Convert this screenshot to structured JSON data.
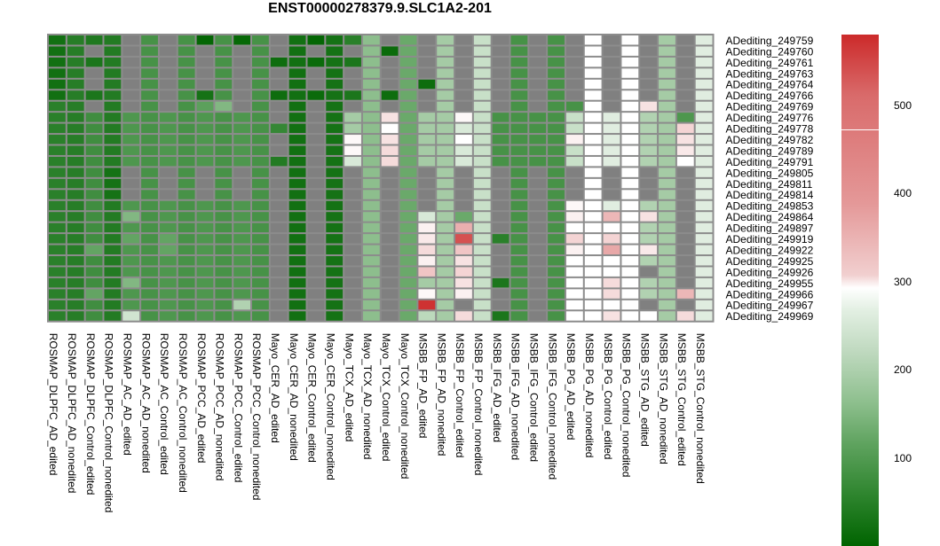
{
  "chart_data": {
    "type": "heatmap",
    "title": "ENST00000278379.9.SLC1A2-201",
    "na_color": "#808080",
    "rows": [
      "ADediting_249759",
      "ADediting_249760",
      "ADediting_249761",
      "ADediting_249763",
      "ADediting_249764",
      "ADediting_249766",
      "ADediting_249769",
      "ADediting_249776",
      "ADediting_249778",
      "ADediting_249782",
      "ADediting_249789",
      "ADediting_249791",
      "ADediting_249805",
      "ADediting_249811",
      "ADediting_249814",
      "ADediting_249853",
      "ADediting_249864",
      "ADediting_249897",
      "ADediting_249919",
      "ADediting_249922",
      "ADediting_249925",
      "ADediting_249926",
      "ADediting_249955",
      "ADediting_249966",
      "ADediting_249967",
      "ADediting_249969"
    ],
    "columns": [
      "ROSMAP_DLPFC_AD_edited",
      "ROSMAP_DLPFC_AD_nonedited",
      "ROSMAP_DLPFC_Control_edited",
      "ROSMAP_DLPFC_Control_nonedited",
      "ROSMAP_AC_AD_edited",
      "ROSMAP_AC_AD_nonedited",
      "ROSMAP_AC_Control_edited",
      "ROSMAP_AC_Control_nonedited",
      "ROSMAP_PCC_AD_edited",
      "ROSMAP_PCC_AD_nonedited",
      "ROSMAP_PCC_Control_edited",
      "ROSMAP_PCC_Control_nonedited",
      "Mayo_CER_AD_edited",
      "Mayo_CER_AD_nonedited",
      "Mayo_CER_Control_edited",
      "Mayo_CER_Control_nonedited",
      "Mayo_TCX_AD_edited",
      "Mayo_TCX_AD_nonedited",
      "Mayo_TCX_Control_edited",
      "Mayo_TCX_Control_nonedited",
      "MSBB_FP_AD_edited",
      "MSBB_FP_AD_nonedited",
      "MSBB_FP_Control_edited",
      "MSBB_FP_Control_nonedited",
      "MSBB_IFG_AD_edited",
      "MSBB_IFG_AD_nonedited",
      "MSBB_IFG_Control_edited",
      "MSBB_IFG_Control_nonedited",
      "MSBB_PG_AD_edited",
      "MSBB_PG_AD_nonedited",
      "MSBB_PG_Control_edited",
      "MSBB_PG_Control_nonedited",
      "MSBB_STG_AD_edited",
      "MSBB_STG_AD_nonedited",
      "MSBB_STG_Control_edited",
      "MSBB_STG_Control_nonedited"
    ],
    "color_scale": {
      "min": 0,
      "max": 580,
      "stops": [
        [
          0,
          "#006400"
        ],
        [
          150,
          "#6AA96A"
        ],
        [
          230,
          "#C8E0C8"
        ],
        [
          300,
          "#FFFFFF"
        ],
        [
          420,
          "#E8A8A8"
        ],
        [
          580,
          "#CC2A2A"
        ]
      ],
      "ticks": [
        100,
        200,
        300,
        400,
        500
      ]
    },
    "values": [
      [
        25,
        55,
        45,
        50,
        null,
        100,
        null,
        100,
        5,
        100,
        10,
        100,
        null,
        25,
        5,
        30,
        60,
        180,
        null,
        150,
        null,
        200,
        null,
        230,
        null,
        100,
        null,
        100,
        null,
        300,
        null,
        300,
        null,
        200,
        null,
        260
      ],
      [
        25,
        55,
        null,
        50,
        null,
        100,
        null,
        100,
        null,
        100,
        null,
        100,
        null,
        25,
        null,
        30,
        null,
        180,
        15,
        150,
        null,
        200,
        null,
        230,
        null,
        100,
        null,
        100,
        null,
        300,
        null,
        300,
        null,
        200,
        null,
        260
      ],
      [
        25,
        55,
        40,
        50,
        null,
        100,
        null,
        100,
        null,
        100,
        null,
        100,
        20,
        25,
        15,
        30,
        40,
        180,
        null,
        150,
        null,
        200,
        null,
        230,
        null,
        100,
        null,
        100,
        null,
        300,
        null,
        300,
        null,
        200,
        null,
        260
      ],
      [
        25,
        55,
        null,
        50,
        null,
        100,
        null,
        100,
        null,
        100,
        null,
        100,
        null,
        25,
        null,
        30,
        null,
        180,
        null,
        150,
        null,
        200,
        null,
        230,
        null,
        100,
        null,
        100,
        null,
        300,
        null,
        300,
        null,
        200,
        null,
        260
      ],
      [
        25,
        55,
        null,
        50,
        null,
        100,
        null,
        100,
        null,
        100,
        null,
        100,
        null,
        25,
        null,
        30,
        null,
        180,
        null,
        150,
        20,
        200,
        null,
        230,
        null,
        100,
        null,
        100,
        null,
        300,
        null,
        300,
        null,
        200,
        null,
        260
      ],
      [
        25,
        55,
        40,
        50,
        null,
        100,
        null,
        100,
        30,
        100,
        null,
        100,
        20,
        25,
        15,
        30,
        40,
        180,
        20,
        150,
        null,
        200,
        null,
        230,
        null,
        100,
        null,
        100,
        null,
        300,
        null,
        300,
        null,
        200,
        null,
        260
      ],
      [
        60,
        55,
        null,
        50,
        null,
        100,
        null,
        100,
        130,
        170,
        null,
        100,
        null,
        25,
        null,
        30,
        null,
        180,
        null,
        150,
        null,
        200,
        null,
        230,
        null,
        100,
        null,
        100,
        100,
        300,
        null,
        300,
        340,
        200,
        null,
        260
      ],
      [
        60,
        55,
        90,
        50,
        110,
        100,
        110,
        100,
        110,
        100,
        110,
        100,
        null,
        25,
        null,
        30,
        200,
        180,
        340,
        150,
        200,
        200,
        310,
        230,
        100,
        100,
        100,
        100,
        230,
        300,
        260,
        300,
        210,
        200,
        110,
        260
      ],
      [
        60,
        55,
        90,
        50,
        110,
        100,
        110,
        100,
        110,
        100,
        110,
        100,
        75,
        25,
        null,
        30,
        200,
        180,
        300,
        150,
        200,
        200,
        250,
        230,
        100,
        100,
        100,
        100,
        230,
        300,
        260,
        300,
        210,
        200,
        360,
        260
      ],
      [
        60,
        55,
        90,
        50,
        110,
        100,
        110,
        100,
        110,
        100,
        110,
        100,
        null,
        25,
        null,
        30,
        310,
        180,
        340,
        150,
        200,
        200,
        300,
        230,
        100,
        100,
        100,
        100,
        320,
        300,
        260,
        300,
        210,
        200,
        340,
        260
      ],
      [
        60,
        55,
        90,
        50,
        110,
        100,
        110,
        100,
        110,
        100,
        110,
        100,
        null,
        25,
        null,
        30,
        310,
        180,
        350,
        150,
        200,
        200,
        250,
        230,
        100,
        100,
        100,
        100,
        230,
        300,
        260,
        300,
        210,
        200,
        330,
        260
      ],
      [
        60,
        55,
        90,
        50,
        110,
        100,
        110,
        100,
        110,
        100,
        110,
        100,
        50,
        25,
        null,
        30,
        250,
        180,
        350,
        150,
        200,
        200,
        250,
        230,
        100,
        100,
        100,
        100,
        230,
        300,
        260,
        300,
        210,
        200,
        300,
        260
      ],
      [
        60,
        55,
        90,
        30,
        null,
        100,
        null,
        100,
        null,
        100,
        null,
        100,
        null,
        25,
        null,
        30,
        null,
        180,
        null,
        150,
        null,
        200,
        null,
        230,
        null,
        100,
        null,
        100,
        null,
        300,
        null,
        300,
        null,
        200,
        null,
        260
      ],
      [
        60,
        55,
        90,
        30,
        null,
        100,
        null,
        100,
        null,
        100,
        null,
        100,
        null,
        25,
        null,
        30,
        null,
        180,
        null,
        150,
        null,
        200,
        null,
        230,
        null,
        100,
        null,
        100,
        null,
        300,
        null,
        300,
        null,
        200,
        null,
        260
      ],
      [
        60,
        55,
        90,
        30,
        null,
        100,
        null,
        100,
        null,
        100,
        null,
        100,
        null,
        25,
        null,
        30,
        null,
        180,
        null,
        150,
        null,
        200,
        null,
        230,
        null,
        100,
        null,
        100,
        null,
        300,
        null,
        300,
        null,
        200,
        null,
        260
      ],
      [
        60,
        55,
        90,
        50,
        110,
        100,
        110,
        100,
        110,
        100,
        110,
        100,
        null,
        25,
        null,
        30,
        null,
        180,
        null,
        150,
        null,
        200,
        null,
        230,
        null,
        100,
        null,
        100,
        310,
        300,
        260,
        300,
        210,
        200,
        null,
        260
      ],
      [
        60,
        55,
        90,
        50,
        170,
        100,
        110,
        100,
        110,
        100,
        110,
        100,
        null,
        25,
        null,
        30,
        null,
        180,
        null,
        150,
        250,
        200,
        150,
        230,
        null,
        100,
        null,
        100,
        320,
        300,
        400,
        300,
        340,
        200,
        null,
        260
      ],
      [
        60,
        55,
        90,
        50,
        110,
        100,
        110,
        100,
        110,
        100,
        110,
        100,
        null,
        25,
        null,
        30,
        null,
        180,
        null,
        150,
        320,
        200,
        410,
        230,
        null,
        100,
        null,
        100,
        300,
        300,
        300,
        300,
        210,
        200,
        null,
        260
      ],
      [
        60,
        55,
        90,
        50,
        140,
        100,
        140,
        100,
        110,
        100,
        110,
        100,
        null,
        25,
        null,
        30,
        null,
        180,
        null,
        150,
        330,
        200,
        530,
        230,
        60,
        100,
        null,
        100,
        360,
        300,
        360,
        300,
        210,
        200,
        null,
        260
      ],
      [
        60,
        55,
        140,
        50,
        110,
        100,
        140,
        100,
        110,
        100,
        110,
        100,
        null,
        25,
        null,
        30,
        null,
        180,
        null,
        150,
        350,
        200,
        380,
        230,
        null,
        100,
        null,
        100,
        320,
        300,
        420,
        300,
        330,
        200,
        null,
        260
      ],
      [
        60,
        55,
        90,
        50,
        110,
        100,
        110,
        100,
        110,
        100,
        110,
        100,
        null,
        25,
        null,
        30,
        null,
        180,
        null,
        150,
        320,
        200,
        340,
        230,
        null,
        100,
        null,
        100,
        300,
        300,
        300,
        300,
        210,
        200,
        null,
        260
      ],
      [
        60,
        55,
        90,
        50,
        110,
        100,
        110,
        100,
        110,
        100,
        110,
        100,
        null,
        25,
        null,
        30,
        null,
        180,
        null,
        150,
        380,
        200,
        360,
        230,
        null,
        100,
        null,
        100,
        300,
        300,
        300,
        300,
        null,
        200,
        null,
        260
      ],
      [
        60,
        55,
        90,
        50,
        170,
        100,
        110,
        100,
        110,
        100,
        110,
        100,
        null,
        25,
        null,
        30,
        null,
        180,
        null,
        150,
        200,
        200,
        340,
        230,
        40,
        100,
        null,
        100,
        300,
        300,
        350,
        300,
        210,
        200,
        null,
        260
      ],
      [
        60,
        55,
        140,
        50,
        110,
        100,
        110,
        100,
        110,
        100,
        110,
        100,
        null,
        25,
        null,
        30,
        null,
        180,
        null,
        150,
        310,
        200,
        320,
        230,
        null,
        100,
        null,
        100,
        300,
        300,
        350,
        300,
        210,
        200,
        400,
        260
      ],
      [
        60,
        55,
        90,
        50,
        110,
        100,
        110,
        100,
        110,
        100,
        210,
        100,
        null,
        25,
        null,
        30,
        null,
        180,
        null,
        150,
        570,
        200,
        null,
        230,
        null,
        100,
        null,
        100,
        300,
        300,
        300,
        300,
        null,
        200,
        null,
        260
      ],
      [
        60,
        55,
        90,
        50,
        240,
        100,
        110,
        100,
        110,
        100,
        110,
        100,
        null,
        25,
        null,
        30,
        null,
        180,
        null,
        150,
        220,
        200,
        350,
        230,
        40,
        100,
        null,
        100,
        300,
        300,
        340,
        300,
        300,
        200,
        350,
        260
      ]
    ]
  }
}
